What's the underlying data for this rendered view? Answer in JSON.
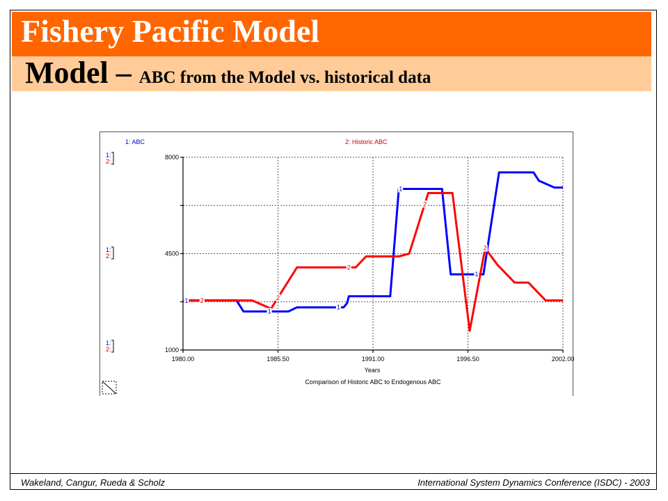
{
  "slide": {
    "title": "Fishery Pacific Model",
    "subtitle_main": "Model – ",
    "subtitle_rest": "ABC from the Model vs. historical data",
    "footer_left": "Wakeland, Cangur, Rueda & Scholz",
    "footer_right": "International System Dynamics Conference (ISDC) - 2003"
  },
  "colors": {
    "title_bar": "#ff6600",
    "subtitle_bar": "#ffcc99",
    "series1": "#0000ff",
    "series2": "#ff0000"
  },
  "chart_data": {
    "type": "line",
    "title": "Comparison of Historic ABC to Endogenous ABC",
    "xlabel": "Years",
    "ylabel": "",
    "xlim": [
      1980.0,
      2002.0
    ],
    "ylim": [
      1000,
      8000
    ],
    "x_ticks": [
      "1980.00",
      "1985.50",
      "1991.00",
      "1996.50",
      "2002.00"
    ],
    "y_ticks": [
      "8000",
      "4500",
      "1000"
    ],
    "grid": true,
    "legend": [
      {
        "label": "1: ABC",
        "marker": "1"
      },
      {
        "label": "2: Historic ABC",
        "marker": "2"
      }
    ],
    "scale_labels": [
      "1:",
      "2:"
    ],
    "series": [
      {
        "name": "ABC",
        "marker": "1",
        "x": [
          1980.0,
          1983.1,
          1983.5,
          1986.1,
          1986.6,
          1989.0,
          1989.3,
          1989.5,
          1989.6,
          1992.0,
          1992.5,
          1995.0,
          1995.5,
          1996.7,
          1997.4,
          1998.3,
          1998.5,
          2000.3,
          2000.6,
          2001.5,
          2002.0
        ],
        "y": [
          2800,
          2800,
          2400,
          2400,
          2550,
          2550,
          2550,
          2700,
          2950,
          2950,
          6850,
          6850,
          3750,
          3750,
          3750,
          7450,
          7450,
          7450,
          7150,
          6900,
          6900
        ]
      },
      {
        "name": "Historic ABC",
        "marker": "2",
        "x": [
          1980.0,
          1984.0,
          1985.1,
          1985.8,
          1986.6,
          1990.0,
          1990.6,
          1992.5,
          1993.1,
          1994.2,
          1995.6,
          1996.6,
          1997.5,
          1998.2,
          1999.2,
          2000.0,
          2001.0,
          2002.0
        ],
        "y": [
          2800,
          2800,
          2500,
          3200,
          4000,
          4000,
          4400,
          4400,
          4500,
          6700,
          6700,
          1700,
          4700,
          4100,
          3450,
          3450,
          2800,
          2800
        ]
      }
    ]
  }
}
